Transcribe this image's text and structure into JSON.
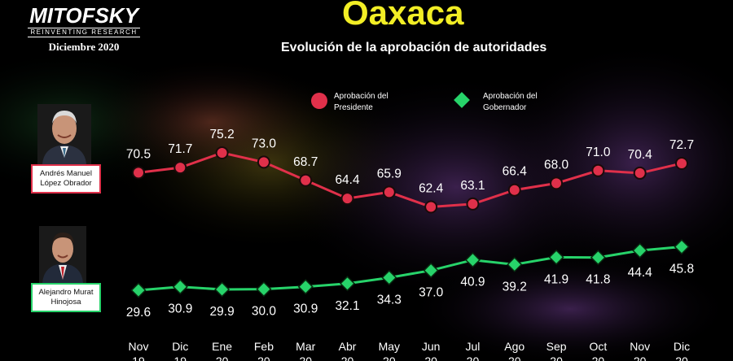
{
  "logo": {
    "brand": "MITOFSKY",
    "tagline": "REINVENTING RESEARCH",
    "date": "Diciembre 2020"
  },
  "header": {
    "title": "Oaxaca",
    "subtitle": "Evolución de la aprobación de autoridades"
  },
  "people": {
    "president": {
      "name_line1": "Andrés Manuel",
      "name_line2": "López Obrador"
    },
    "governor": {
      "name_line1": "Alejandro Murat",
      "name_line2": "Hinojosa"
    }
  },
  "colors": {
    "president": "#e0304a",
    "governor": "#27d36a",
    "title": "#f2ee25"
  },
  "chart_data": {
    "type": "line",
    "title": "Evolución de la aprobación de autoridades",
    "xlabel": "",
    "ylabel": "",
    "categories": [
      "Nov 19",
      "Dic 19",
      "Ene 20",
      "Feb 20",
      "Mar 20",
      "Abr 20",
      "May 20",
      "Jun 20",
      "Jul 20",
      "Ago 20",
      "Sep 20",
      "Oct 20",
      "Nov 20",
      "Dic 20"
    ],
    "x_month": [
      "Nov",
      "Dic",
      "Ene",
      "Feb",
      "Mar",
      "Abr",
      "May",
      "Jun",
      "Jul",
      "Ago",
      "Sep",
      "Oct",
      "Nov",
      "Dic"
    ],
    "x_year": [
      "19",
      "19",
      "20",
      "20",
      "20",
      "20",
      "20",
      "20",
      "20",
      "20",
      "20",
      "20",
      "20",
      "20"
    ],
    "series": [
      {
        "name_line1": "Aprobación del",
        "name_line2": "Presidente",
        "marker": "circle",
        "values": [
          70.5,
          71.7,
          75.2,
          73.0,
          68.7,
          64.4,
          65.9,
          62.4,
          63.1,
          66.4,
          68.0,
          71.0,
          70.4,
          72.7
        ]
      },
      {
        "name_line1": "Aprobación del",
        "name_line2": "Gobernador",
        "marker": "diamond",
        "values": [
          29.6,
          30.9,
          29.9,
          30.0,
          30.9,
          32.1,
          34.3,
          37.0,
          40.9,
          39.2,
          41.9,
          41.8,
          44.4,
          45.8
        ]
      }
    ],
    "labels_pres": [
      "70.5",
      "71.7",
      "75.2",
      "73.0",
      "68.7",
      "64.4",
      "65.9",
      "62.4",
      "63.1",
      "66.4",
      "68.0",
      "71.0",
      "70.4",
      "72.7"
    ],
    "labels_gov": [
      "29.6",
      "30.9",
      "29.9",
      "30.0",
      "30.9",
      "32.1",
      "34.3",
      "37.0",
      "40.9",
      "39.2",
      "41.9",
      "41.8",
      "44.4",
      "45.8"
    ],
    "legend_position": "top",
    "grid": false
  }
}
